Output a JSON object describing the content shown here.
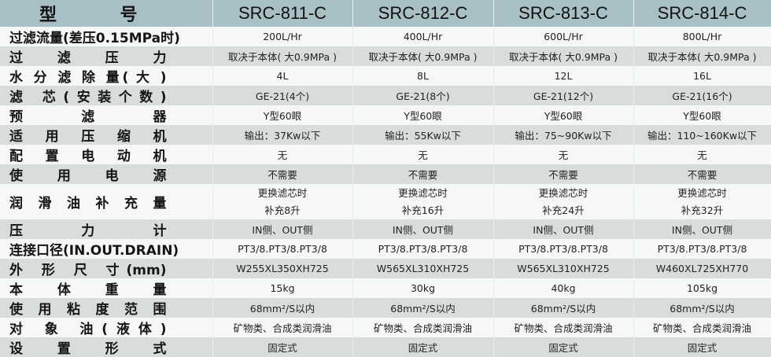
{
  "header": {
    "label": "型 号",
    "models": [
      "SRC-811-C",
      "SRC-812-C",
      "SRC-813-C",
      "SRC-814-C"
    ]
  },
  "rows": [
    {
      "label": "过滤流量(差压0.15MPa时)",
      "values": [
        "200L/Hr",
        "400L/Hr",
        "600L/Hr",
        "800L/Hr"
      ]
    },
    {
      "label": "过 滤 压 力",
      "values": [
        "取决于本体( 大0.9MPa )",
        "取决于本体( 大0.9MPa )",
        "取决于本体( 大0.9MPa )",
        "取决于本体( 大0.9MPa )"
      ]
    },
    {
      "label": "水 分 滤 除 量( 大 )",
      "values": [
        "4L",
        "8L",
        "12L",
        "16L"
      ]
    },
    {
      "label": "滤 芯(安装个数)",
      "values": [
        "GE-21(4个)",
        "GE-21(8个)",
        "GE-21(12个)",
        "GE-21(16个)"
      ]
    },
    {
      "label": "预 滤 器",
      "values": [
        "Y型60眼",
        "Y型60眼",
        "Y型60眼",
        "Y型60眼"
      ]
    },
    {
      "label": "适 用 压 缩 机",
      "values": [
        "输出：37Kw以下",
        "输出：55Kw以下",
        "输出：75~90Kw以下",
        "输出：110~160Kw以下"
      ]
    },
    {
      "label": "配 置 电 动 机",
      "values": [
        "无",
        "无",
        "无",
        "无"
      ]
    },
    {
      "label": "使 用 电 源",
      "values": [
        "不需要",
        "不需要",
        "不需要",
        "不需要"
      ]
    },
    {
      "label": "润 滑 油 补 充 量",
      "values": [
        [
          "更换滤芯时",
          "补充8升"
        ],
        [
          "更换滤芯时",
          "补充16升"
        ],
        [
          "更换滤芯时",
          "补充24升"
        ],
        [
          "更换滤芯时",
          "补充32升"
        ]
      ]
    },
    {
      "label": "压 力 计",
      "values": [
        "IN侧、OUT侧",
        "IN侧、OUT侧",
        "IN侧、OUT侧",
        "IN侧、OUT侧"
      ]
    },
    {
      "label": "连接口径(IN.OUT.DRAIN)",
      "values": [
        "PT3/8.PT3/8.PT3/8",
        "PT3/8.PT3/8.PT3/8",
        "PT3/8.PT3/8.PT3/8",
        "PT3/8.PT3/8.PT3/8"
      ]
    },
    {
      "label": "外 形 尺 寸(mm)",
      "values": [
        "W255XL350XH725",
        "W565XL310XH725",
        "W565XL310XH725",
        "W460XL725XH770"
      ]
    },
    {
      "label": "本 体 重 量",
      "values": [
        "15kg",
        "30kg",
        "40kg",
        "105kg"
      ]
    },
    {
      "label": "使 用 粘 度 范 围",
      "values": [
        "68mm²/S以内",
        "68mm²/S以内",
        "68mm²/S以内",
        "68mm²/S以内"
      ]
    },
    {
      "label": "对 象 油(液体)",
      "values": [
        "矿物类、合成类润滑油",
        "矿物类、合成类润滑油",
        "矿物类、合成类润滑油",
        "矿物类、合成类润滑油"
      ]
    },
    {
      "label": "设 置 形 式",
      "values": [
        "固定式",
        "固定式",
        "固定式",
        "固定式"
      ]
    }
  ]
}
